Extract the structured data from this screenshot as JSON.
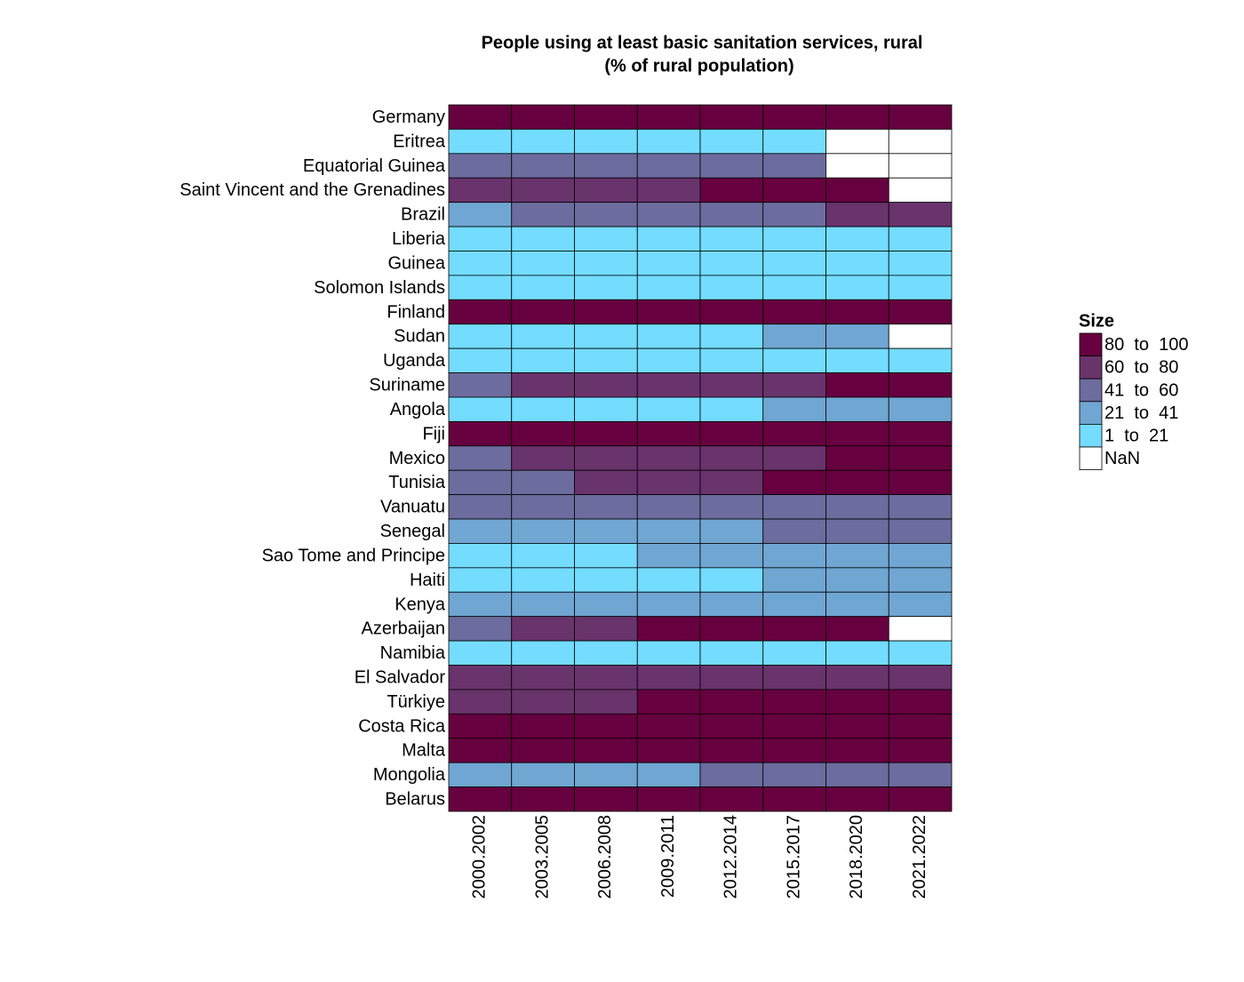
{
  "chart_data": {
    "type": "heatmap",
    "title": [
      "People using at least basic sanitation services, rural",
      "(% of rural population)"
    ],
    "categories": [
      "2000.2002",
      "2003.2005",
      "2006.2008",
      "2009.2011",
      "2012.2014",
      "2015.2017",
      "2018.2020",
      "2021.2022"
    ],
    "rows": [
      "Germany",
      "Eritrea",
      "Equatorial Guinea",
      "Saint Vincent and the Grenadines",
      "Brazil",
      "Liberia",
      "Guinea",
      "Solomon Islands",
      "Finland",
      "Sudan",
      "Uganda",
      "Suriname",
      "Angola",
      "Fiji",
      "Mexico",
      "Tunisia",
      "Vanuatu",
      "Senegal",
      "Sao Tome and Principe",
      "Haiti",
      "Kenya",
      "Azerbaijan",
      "Namibia",
      "El Salvador",
      "Türkiye",
      "Costa Rica",
      "Malta",
      "Mongolia",
      "Belarus"
    ],
    "values": [
      [
        90,
        90,
        90,
        90,
        90,
        90,
        90,
        90
      ],
      [
        11,
        11,
        11,
        11,
        11,
        11,
        null,
        null
      ],
      [
        50,
        50,
        50,
        50,
        50,
        50,
        null,
        null
      ],
      [
        70,
        70,
        70,
        70,
        90,
        90,
        90,
        null
      ],
      [
        31,
        50,
        50,
        50,
        50,
        50,
        70,
        70
      ],
      [
        11,
        11,
        11,
        11,
        11,
        11,
        11,
        11
      ],
      [
        11,
        11,
        11,
        11,
        11,
        11,
        11,
        11
      ],
      [
        11,
        11,
        11,
        11,
        11,
        11,
        11,
        11
      ],
      [
        90,
        90,
        90,
        90,
        90,
        90,
        90,
        90
      ],
      [
        11,
        11,
        11,
        11,
        11,
        31,
        31,
        null
      ],
      [
        11,
        11,
        11,
        11,
        11,
        11,
        11,
        11
      ],
      [
        50,
        70,
        70,
        70,
        70,
        70,
        90,
        90
      ],
      [
        11,
        11,
        11,
        11,
        11,
        31,
        31,
        31
      ],
      [
        90,
        90,
        90,
        90,
        90,
        90,
        90,
        90
      ],
      [
        50,
        70,
        70,
        70,
        70,
        70,
        90,
        90
      ],
      [
        50,
        50,
        70,
        70,
        70,
        90,
        90,
        90
      ],
      [
        50,
        50,
        50,
        50,
        50,
        50,
        50,
        50
      ],
      [
        31,
        31,
        31,
        31,
        31,
        50,
        50,
        50
      ],
      [
        11,
        11,
        11,
        31,
        31,
        31,
        31,
        31
      ],
      [
        11,
        11,
        11,
        11,
        11,
        31,
        31,
        31
      ],
      [
        31,
        31,
        31,
        31,
        31,
        31,
        31,
        31
      ],
      [
        50,
        70,
        70,
        90,
        90,
        90,
        90,
        null
      ],
      [
        11,
        11,
        11,
        11,
        11,
        11,
        11,
        11
      ],
      [
        70,
        70,
        70,
        70,
        70,
        70,
        70,
        70
      ],
      [
        70,
        70,
        70,
        90,
        90,
        90,
        90,
        90
      ],
      [
        90,
        90,
        90,
        90,
        90,
        90,
        90,
        90
      ],
      [
        90,
        90,
        90,
        90,
        90,
        90,
        90,
        90
      ],
      [
        31,
        31,
        31,
        31,
        50,
        50,
        50,
        50
      ],
      [
        90,
        90,
        90,
        90,
        90,
        90,
        90,
        90
      ]
    ],
    "bins": [
      1,
      21,
      41,
      60,
      80,
      100
    ],
    "nan_color": "#ffffff",
    "legend": {
      "title": "Size",
      "position": "right",
      "items": [
        {
          "label": "80  to  100",
          "color": "#67003f"
        },
        {
          "label": "60  to  80",
          "color": "#69336c"
        },
        {
          "label": "41  to  60",
          "color": "#6c6c9e"
        },
        {
          "label": "21  to  41",
          "color": "#70a6d2"
        },
        {
          "label": "1  to  21",
          "color": "#73dcff"
        }
      ],
      "nan_label": "NaN"
    }
  }
}
